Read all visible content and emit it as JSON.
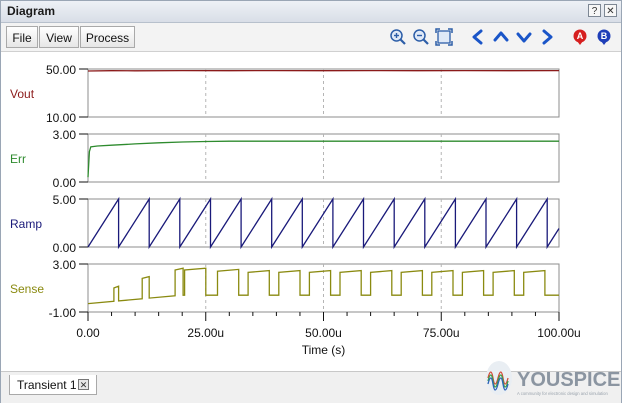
{
  "window": {
    "title": "Diagram"
  },
  "title_buttons": {
    "help": "?",
    "close": "✕"
  },
  "toolbar": {
    "menus": [
      "File",
      "View",
      "Process"
    ],
    "icons": [
      "zoom-in-icon",
      "zoom-out-icon",
      "zoom-fit-icon",
      "arrow-left-icon",
      "arrow-up-icon",
      "arrow-down-icon",
      "arrow-right-icon",
      "cursor-a-icon",
      "cursor-b-icon"
    ],
    "cursor_a_label": "A",
    "cursor_b_label": "B",
    "colors": {
      "nav": "#1a55c8",
      "cursor_a": "#d61f1f",
      "cursor_b": "#1f3fb8"
    }
  },
  "chart_data": [
    {
      "type": "line",
      "label": "Vout",
      "y_ticks": [
        "50.00",
        "10.00"
      ],
      "ylim": [
        10,
        50
      ],
      "color": "#8b1a1a",
      "series": [
        {
          "x": [
            0,
            5,
            10,
            20,
            30,
            40,
            50,
            60,
            70,
            80,
            90,
            100
          ],
          "values": [
            48.3,
            48.6,
            48.5,
            48.7,
            48.6,
            48.7,
            48.6,
            48.7,
            48.6,
            48.7,
            48.6,
            48.7
          ]
        }
      ]
    },
    {
      "type": "line",
      "label": "Err",
      "y_ticks": [
        "3.00",
        "0.00"
      ],
      "ylim": [
        0,
        3
      ],
      "color": "#2e8b2e",
      "series": [
        {
          "x": [
            0,
            0.3,
            0.6,
            2,
            5,
            10,
            15,
            20,
            25,
            30,
            40,
            50,
            60,
            70,
            80,
            90,
            100
          ],
          "values": [
            0.3,
            1.9,
            2.2,
            2.25,
            2.3,
            2.38,
            2.45,
            2.5,
            2.53,
            2.55,
            2.55,
            2.55,
            2.55,
            2.55,
            2.55,
            2.55,
            2.55
          ]
        }
      ]
    },
    {
      "type": "line",
      "label": "Ramp",
      "y_ticks": [
        "5.00",
        "0.00"
      ],
      "ylim": [
        0,
        5
      ],
      "color": "#1a1a7a",
      "sawtooth": {
        "period": 6.5,
        "min": 0,
        "max": 5,
        "start": 0,
        "end": 100
      }
    },
    {
      "type": "line",
      "label": "Sense",
      "y_ticks": [
        "3.00",
        "-1.00"
      ],
      "ylim": [
        -1,
        3
      ],
      "color": "#8a8a10",
      "pulses": {
        "baseline_start": -0.3,
        "baseline_ramp_to": 0.4,
        "high": 2.3,
        "edges": [
          [
            5.5,
            6.5,
            1.0
          ],
          [
            11.5,
            13.0,
            1.8
          ],
          [
            18.5,
            20.2,
            2.5
          ],
          [
            20.5,
            25.0,
            2.5
          ],
          [
            27.5,
            32.0,
            2.4
          ],
          [
            34.0,
            38.5,
            2.3
          ],
          [
            40.5,
            45.0,
            2.3
          ],
          [
            47.0,
            51.5,
            2.3
          ],
          [
            53.5,
            58.0,
            2.3
          ],
          [
            60.0,
            64.5,
            2.3
          ],
          [
            66.5,
            71.0,
            2.3
          ],
          [
            73.0,
            77.5,
            2.3
          ],
          [
            79.5,
            84.0,
            2.3
          ],
          [
            86.0,
            90.5,
            2.3
          ],
          [
            92.5,
            97.0,
            2.3
          ]
        ]
      }
    }
  ],
  "x_axis": {
    "ticks": [
      "0.00",
      "25.00u",
      "50.00u",
      "75.00u",
      "100.00u"
    ],
    "xlim": [
      0,
      100
    ],
    "label": "Time (s)"
  },
  "tabs": [
    {
      "label": "Transient 1",
      "close": "✕"
    }
  ],
  "logo": {
    "text": "YOUSPICE",
    "tagline": "A community for electronic design and simulation"
  }
}
